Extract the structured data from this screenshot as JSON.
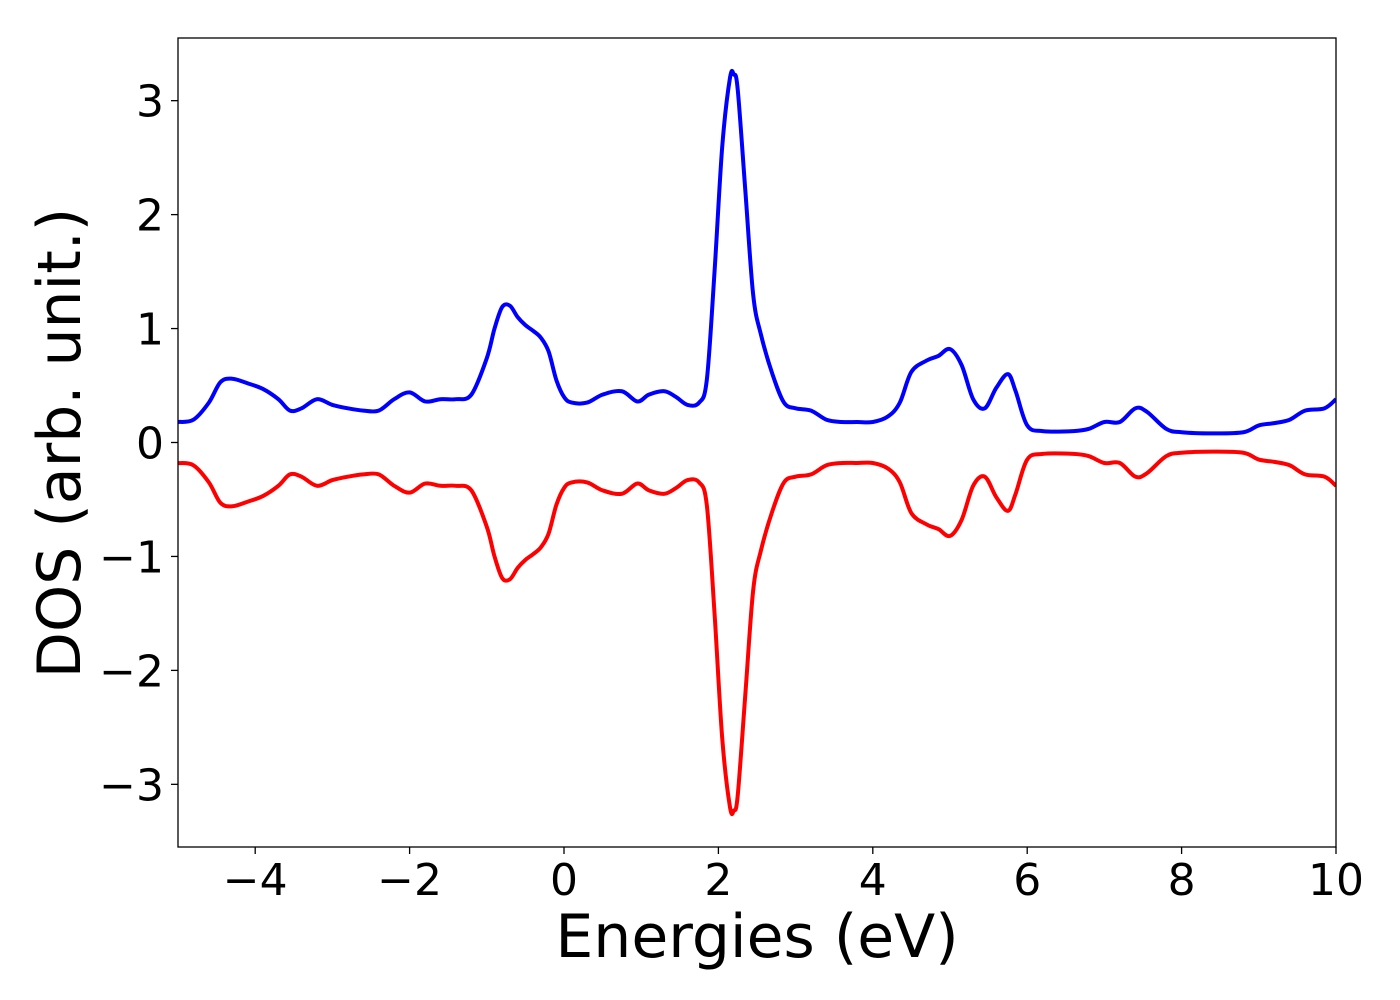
{
  "chart_data": {
    "type": "line",
    "title": "",
    "xlabel": "Energies (eV)",
    "ylabel": "DOS (arb. unit.)",
    "xlim": [
      -5,
      10
    ],
    "ylim": [
      -3.55,
      3.55
    ],
    "xticks": [
      -4,
      -2,
      0,
      2,
      4,
      6,
      8,
      10
    ],
    "xtick_labels": [
      "−4",
      "−2",
      "0",
      "2",
      "4",
      "6",
      "8",
      "10"
    ],
    "yticks": [
      -3,
      -2,
      -1,
      0,
      1,
      2,
      3
    ],
    "ytick_labels": [
      "−3",
      "−2",
      "−1",
      "0",
      "1",
      "2",
      "3"
    ],
    "grid": false,
    "legend": "none",
    "series": [
      {
        "color": "#0000ff",
        "x": [
          -5.0,
          -4.8,
          -4.6,
          -4.45,
          -4.3,
          -4.1,
          -3.9,
          -3.7,
          -3.55,
          -3.4,
          -3.2,
          -3.0,
          -2.8,
          -2.6,
          -2.4,
          -2.2,
          -2.0,
          -1.8,
          -1.6,
          -1.4,
          -1.2,
          -1.0,
          -0.9,
          -0.8,
          -0.7,
          -0.6,
          -0.5,
          -0.4,
          -0.3,
          -0.2,
          -0.1,
          0.0,
          0.1,
          0.3,
          0.5,
          0.75,
          0.95,
          1.1,
          1.3,
          1.45,
          1.6,
          1.75,
          1.85,
          1.95,
          2.05,
          2.15,
          2.2,
          2.25,
          2.35,
          2.45,
          2.55,
          2.7,
          2.85,
          3.0,
          3.2,
          3.4,
          3.6,
          3.8,
          4.0,
          4.2,
          4.35,
          4.5,
          4.7,
          4.85,
          5.0,
          5.15,
          5.3,
          5.45,
          5.6,
          5.75,
          5.85,
          6.0,
          6.2,
          6.6,
          6.8,
          7.0,
          7.2,
          7.4,
          7.55,
          7.8,
          8.0,
          8.4,
          8.8,
          9.0,
          9.2,
          9.4,
          9.6,
          9.85,
          10.0
        ],
        "y": [
          0.18,
          0.2,
          0.35,
          0.53,
          0.56,
          0.52,
          0.47,
          0.38,
          0.28,
          0.3,
          0.38,
          0.33,
          0.3,
          0.28,
          0.28,
          0.38,
          0.44,
          0.36,
          0.38,
          0.38,
          0.42,
          0.74,
          1.0,
          1.19,
          1.2,
          1.1,
          1.03,
          0.98,
          0.92,
          0.8,
          0.55,
          0.4,
          0.35,
          0.35,
          0.42,
          0.45,
          0.36,
          0.42,
          0.45,
          0.4,
          0.33,
          0.35,
          0.55,
          1.5,
          2.6,
          3.2,
          3.23,
          3.1,
          2.2,
          1.3,
          0.95,
          0.6,
          0.35,
          0.3,
          0.28,
          0.2,
          0.18,
          0.18,
          0.18,
          0.23,
          0.35,
          0.62,
          0.72,
          0.76,
          0.82,
          0.68,
          0.38,
          0.3,
          0.48,
          0.6,
          0.45,
          0.15,
          0.1,
          0.1,
          0.12,
          0.18,
          0.18,
          0.3,
          0.27,
          0.12,
          0.09,
          0.08,
          0.09,
          0.15,
          0.17,
          0.2,
          0.28,
          0.3,
          0.38
        ]
      },
      {
        "color": "#ff0000",
        "x": [
          -5.0,
          -4.8,
          -4.6,
          -4.45,
          -4.3,
          -4.1,
          -3.9,
          -3.7,
          -3.55,
          -3.4,
          -3.2,
          -3.0,
          -2.8,
          -2.6,
          -2.4,
          -2.2,
          -2.0,
          -1.8,
          -1.6,
          -1.4,
          -1.2,
          -1.0,
          -0.9,
          -0.8,
          -0.7,
          -0.6,
          -0.5,
          -0.4,
          -0.3,
          -0.2,
          -0.1,
          0.0,
          0.1,
          0.3,
          0.5,
          0.75,
          0.95,
          1.1,
          1.3,
          1.45,
          1.6,
          1.75,
          1.85,
          1.95,
          2.05,
          2.15,
          2.2,
          2.25,
          2.35,
          2.45,
          2.55,
          2.7,
          2.85,
          3.0,
          3.2,
          3.4,
          3.6,
          3.8,
          4.0,
          4.2,
          4.35,
          4.5,
          4.7,
          4.85,
          5.0,
          5.15,
          5.3,
          5.45,
          5.6,
          5.75,
          5.85,
          6.0,
          6.2,
          6.6,
          6.8,
          7.0,
          7.2,
          7.4,
          7.55,
          7.8,
          8.0,
          8.4,
          8.8,
          9.0,
          9.2,
          9.4,
          9.6,
          9.85,
          10.0
        ],
        "y": [
          -0.18,
          -0.2,
          -0.35,
          -0.53,
          -0.56,
          -0.52,
          -0.47,
          -0.38,
          -0.28,
          -0.3,
          -0.38,
          -0.33,
          -0.3,
          -0.28,
          -0.28,
          -0.38,
          -0.44,
          -0.36,
          -0.38,
          -0.38,
          -0.42,
          -0.74,
          -1.0,
          -1.19,
          -1.2,
          -1.1,
          -1.03,
          -0.98,
          -0.92,
          -0.8,
          -0.55,
          -0.4,
          -0.35,
          -0.35,
          -0.42,
          -0.45,
          -0.36,
          -0.42,
          -0.45,
          -0.4,
          -0.33,
          -0.35,
          -0.55,
          -1.5,
          -2.6,
          -3.2,
          -3.23,
          -3.1,
          -2.2,
          -1.3,
          -0.95,
          -0.6,
          -0.35,
          -0.3,
          -0.28,
          -0.2,
          -0.18,
          -0.18,
          -0.18,
          -0.23,
          -0.35,
          -0.62,
          -0.72,
          -0.76,
          -0.82,
          -0.68,
          -0.38,
          -0.3,
          -0.48,
          -0.6,
          -0.45,
          -0.15,
          -0.1,
          -0.1,
          -0.12,
          -0.18,
          -0.18,
          -0.3,
          -0.27,
          -0.12,
          -0.09,
          -0.08,
          -0.09,
          -0.15,
          -0.17,
          -0.2,
          -0.28,
          -0.3,
          -0.38
        ]
      }
    ]
  }
}
